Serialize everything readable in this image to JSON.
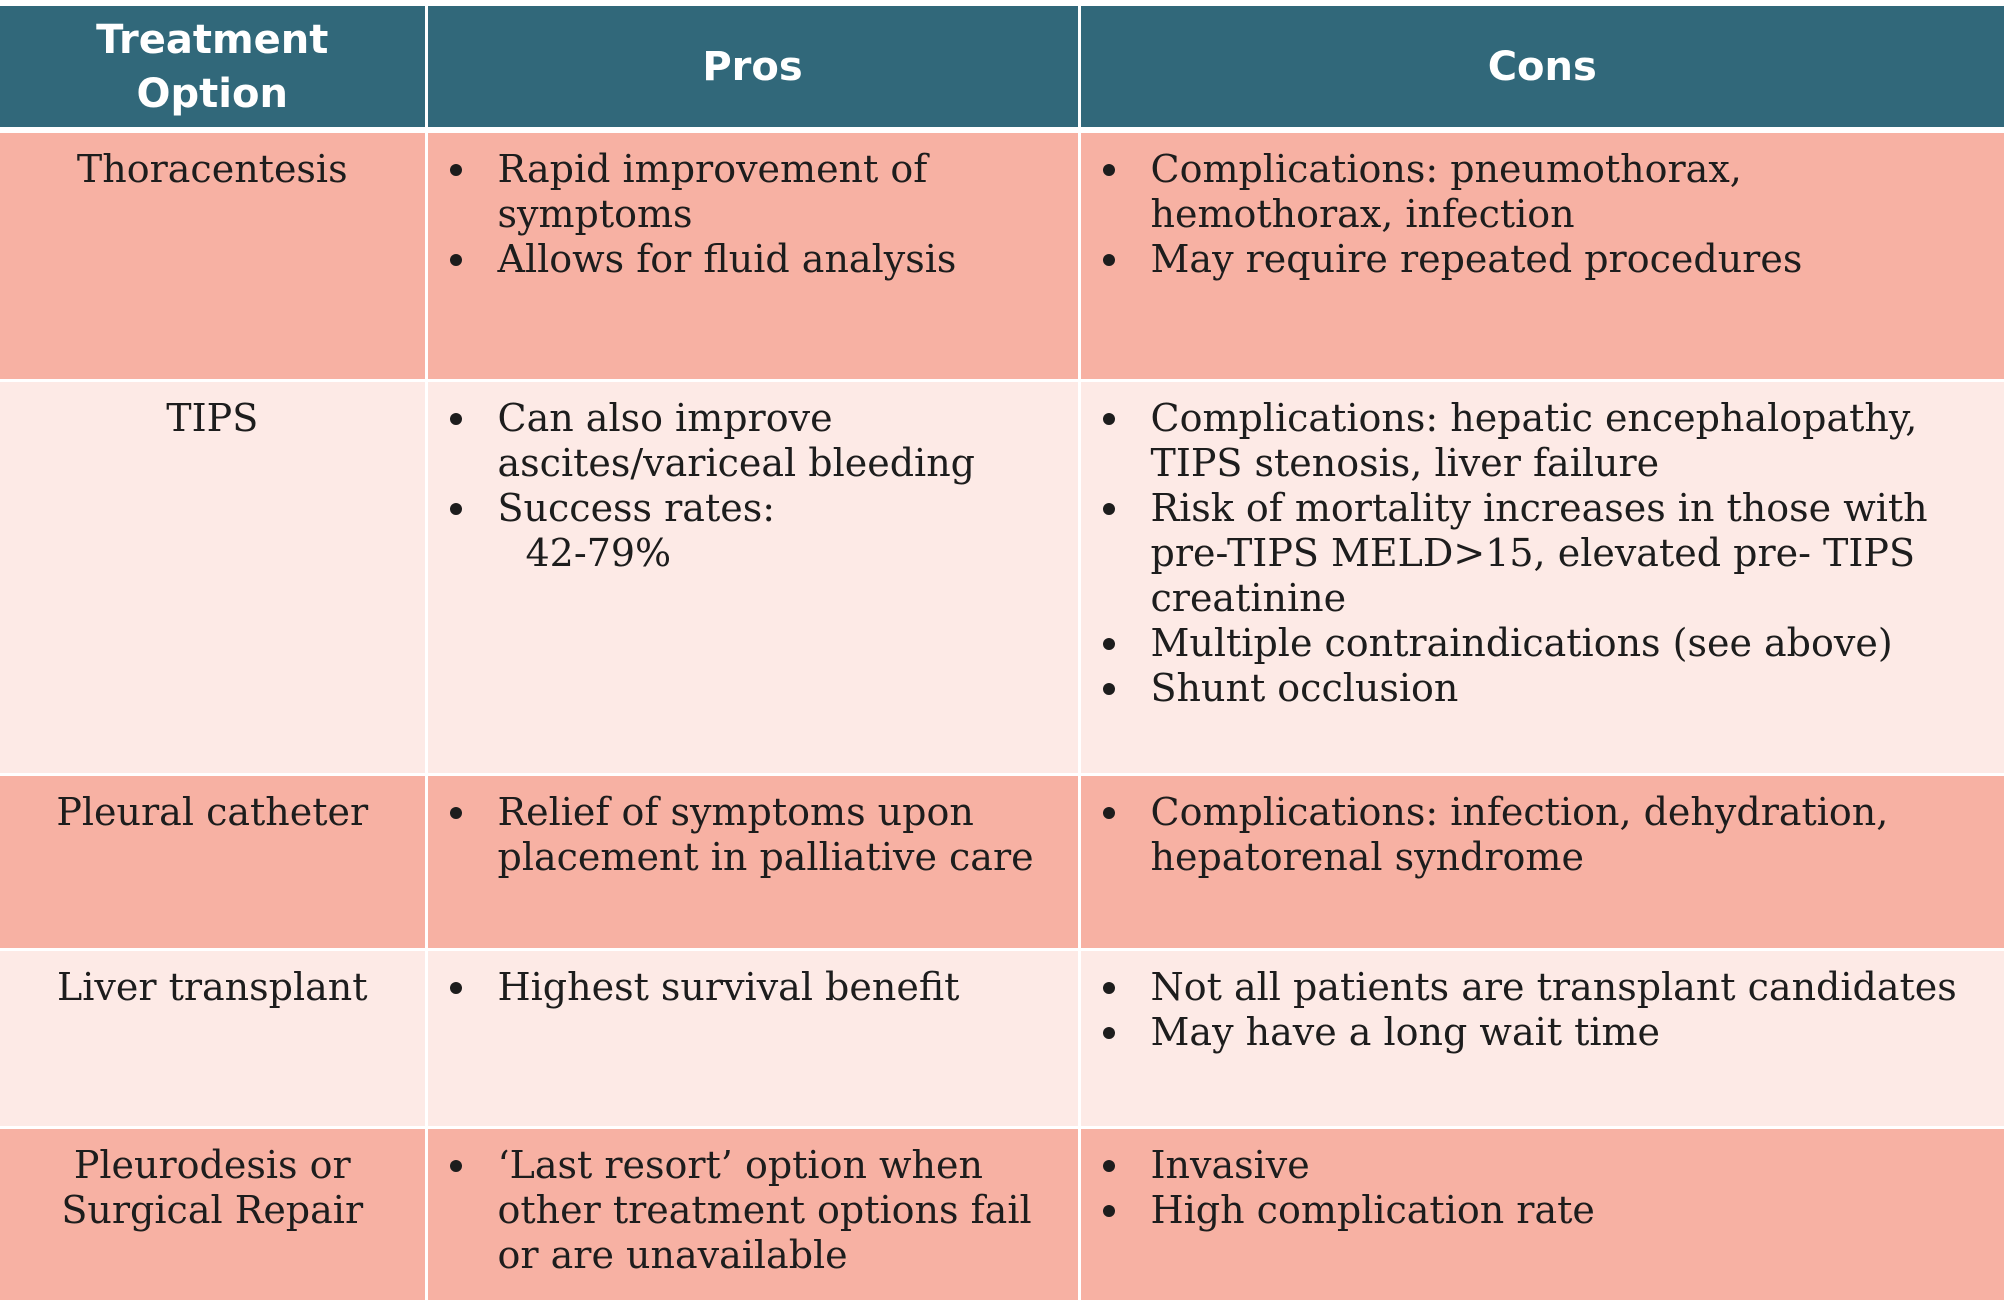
{
  "table": {
    "headers": [
      "Treatment Option",
      "Pros",
      "Cons"
    ],
    "rows": [
      {
        "option": "Thoracentesis",
        "pros": [
          "Rapid improvement of symptoms",
          "Allows for fluid analysis"
        ],
        "cons": [
          "Complications: pneumothorax, hemothorax, infection",
          "May require repeated procedures"
        ]
      },
      {
        "option": "TIPS",
        "pros": [
          "Can also improve ascites/variceal bleeding",
          "Success rates:",
          "42-79%"
        ],
        "cons": [
          "Complications:  hepatic encephalopathy, TIPS stenosis, liver failure",
          "Risk of mortality increases in those with pre-TIPS MELD>15, elevated pre- TIPS creatinine",
          "Multiple contraindications (see above)",
          "Shunt occlusion"
        ]
      },
      {
        "option": "Pleural catheter",
        "pros": [
          "Relief of symptoms upon placement in palliative care"
        ],
        "cons": [
          "Complications:  infection, dehydration, hepatorenal syndrome"
        ]
      },
      {
        "option": "Liver transplant",
        "pros": [
          "Highest survival benefit"
        ],
        "cons": [
          "Not all patients are transplant candidates",
          "May have a long wait time"
        ]
      },
      {
        "option": "Pleurodesis or Surgical Repair",
        "pros": [
          "‘Last resort’ option when other treatment options fail or are unavailable"
        ],
        "cons": [
          "Invasive",
          "High complication rate"
        ]
      }
    ]
  }
}
